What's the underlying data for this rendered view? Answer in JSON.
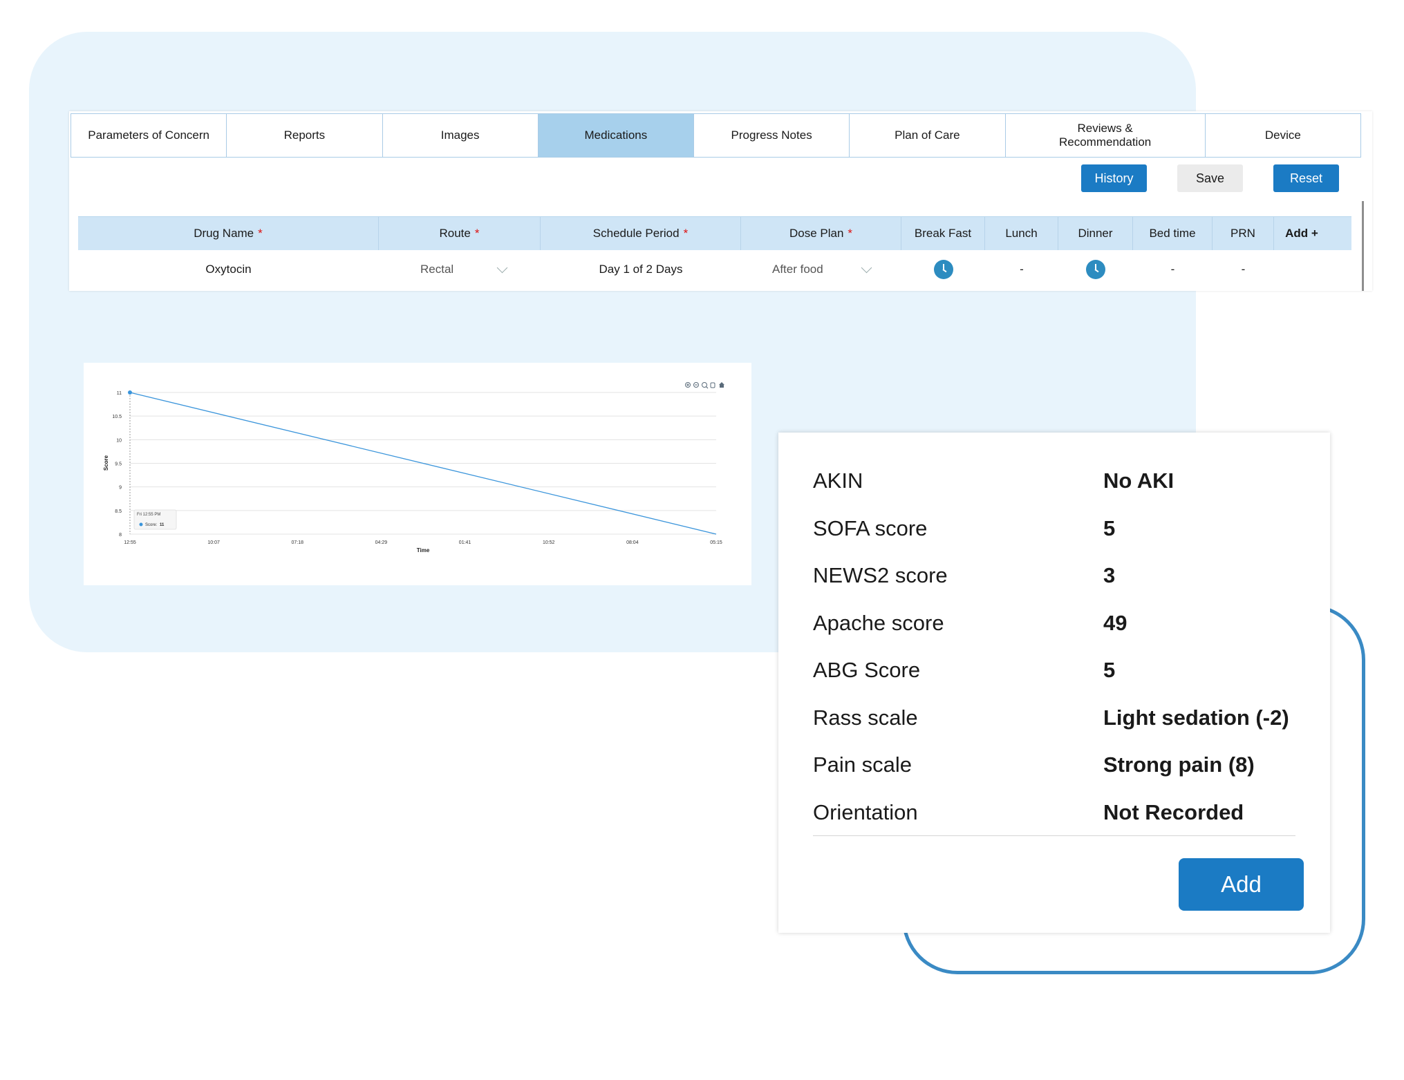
{
  "tabs": [
    {
      "label": "Parameters of Concern",
      "active": false
    },
    {
      "label": "Reports",
      "active": false
    },
    {
      "label": "Images",
      "active": false
    },
    {
      "label": "Medications",
      "active": true
    },
    {
      "label": "Progress Notes",
      "active": false
    },
    {
      "label": "Plan of Care",
      "active": false
    },
    {
      "label": "Reviews & Recommendation",
      "active": false
    },
    {
      "label": "Device",
      "active": false
    }
  ],
  "actions": {
    "history": "History",
    "save": "Save",
    "reset": "Reset"
  },
  "med_table": {
    "headers": {
      "drug_name": "Drug Name",
      "route": "Route",
      "schedule_period": "Schedule Period",
      "dose_plan": "Dose Plan",
      "breakfast": "Break Fast",
      "lunch": "Lunch",
      "dinner": "Dinner",
      "bedtime": "Bed time",
      "prn": "PRN",
      "add": "Add +"
    },
    "required_mark": "*",
    "rows": [
      {
        "drug_name": "Oxytocin",
        "route": "Rectal",
        "schedule_period": "Day 1 of 2 Days",
        "dose_plan": "After food",
        "breakfast": "clock-icon",
        "lunch": "-",
        "dinner": "clock-icon",
        "bedtime": "-",
        "prn": "-"
      }
    ]
  },
  "chart_data": {
    "type": "line",
    "xlabel": "Time",
    "ylabel": "Score",
    "x_ticks": [
      "12:55",
      "10:07",
      "07:18",
      "04:29",
      "01:41",
      "10:52",
      "08:04",
      "05:15"
    ],
    "y_ticks": [
      "8",
      "8.5",
      "9",
      "9.5",
      "10",
      "10.5",
      "11"
    ],
    "ylim": [
      8,
      11
    ],
    "series": [
      {
        "points": [
          {
            "x": "12:55",
            "y": 11
          },
          {
            "x": "05:15",
            "y": 8
          }
        ],
        "color": "#3b95db"
      }
    ],
    "tooltip": {
      "title": "Fri 12:55 PM",
      "label": "Score:",
      "value": "11"
    },
    "toolbar_icons": [
      "zoom-in-icon",
      "zoom-out-icon",
      "magnify-icon",
      "pan-icon",
      "home-icon"
    ],
    "grid": true
  },
  "scores": [
    {
      "label": "AKIN",
      "value": "No AKI"
    },
    {
      "label": "SOFA score",
      "value": "5"
    },
    {
      "label": "NEWS2 score",
      "value": "3"
    },
    {
      "label": "Apache score",
      "value": "49"
    },
    {
      "label": "ABG Score",
      "value": "5"
    },
    {
      "label": "Rass scale",
      "value": "Light sedation (-2)"
    },
    {
      "label": "Pain scale",
      "value": "Strong pain (8)"
    },
    {
      "label": "Orientation",
      "value": "Not Recorded"
    }
  ],
  "score_add_label": "Add",
  "colors": {
    "primary": "#1b7bc4",
    "active_tab": "#a7d0ec",
    "table_header": "#cfe5f6",
    "panel_bg": "#e8f4fc",
    "line": "#3b95db"
  }
}
